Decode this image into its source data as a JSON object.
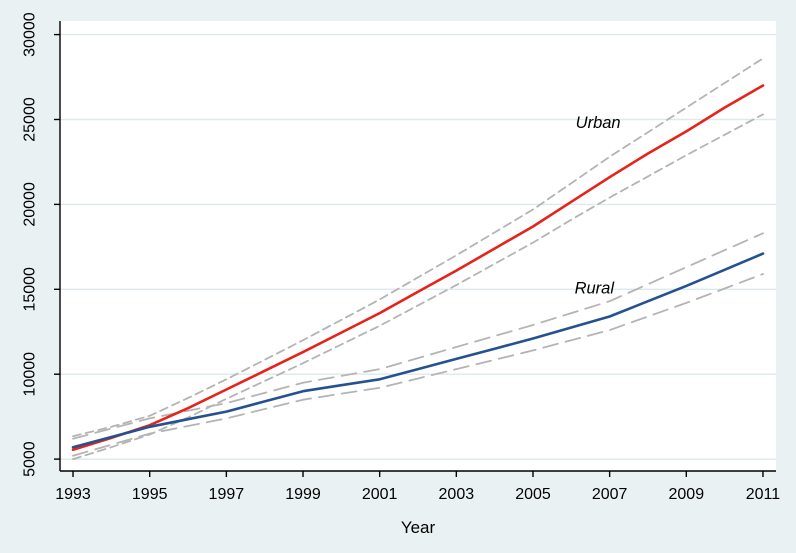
{
  "chart_data": {
    "type": "line",
    "title": "",
    "xlabel": "Year",
    "ylabel": "",
    "x": [
      1993,
      1994,
      1995,
      1996,
      1997,
      1998,
      1999,
      2000,
      2001,
      2002,
      2003,
      2004,
      2005,
      2006,
      2007,
      2008,
      2009,
      2010,
      2011
    ],
    "xticks": [
      1993,
      1995,
      1997,
      1999,
      2001,
      2003,
      2005,
      2007,
      2009,
      2011
    ],
    "yticks": [
      5000,
      10000,
      15000,
      20000,
      25000,
      30000
    ],
    "xlim": [
      1992.66,
      2011.34
    ],
    "ylim": [
      4300,
      30800
    ],
    "grid": "horizontal",
    "legend_position": "none",
    "series": [
      {
        "name": "Urban",
        "role": "mean",
        "color": "#e5231b",
        "style": "solid",
        "width": 2.6,
        "values": [
          5550,
          6250,
          7000,
          8000,
          9100,
          10200,
          11300,
          12450,
          13600,
          14850,
          16100,
          17400,
          18700,
          20150,
          21600,
          23000,
          24300,
          25700,
          27000
        ]
      },
      {
        "name": "Urban CI upper",
        "role": "ci-upper",
        "color": "#b4b4b4",
        "style": "dash-short",
        "width": 1.8,
        "values": [
          6350,
          6900,
          7550,
          8600,
          9700,
          10850,
          12000,
          13200,
          14400,
          15700,
          17000,
          18350,
          19700,
          21250,
          22800,
          24250,
          25700,
          27150,
          28600
        ]
      },
      {
        "name": "Urban CI lower",
        "role": "ci-lower",
        "color": "#b4b4b4",
        "style": "dash-short",
        "width": 1.8,
        "values": [
          5000,
          5700,
          6450,
          7450,
          8550,
          9600,
          10650,
          11750,
          12850,
          14050,
          15250,
          16500,
          17750,
          19100,
          20400,
          21650,
          22900,
          24100,
          25300
        ]
      },
      {
        "name": "Rural",
        "role": "mean",
        "color": "#24518f",
        "style": "solid",
        "width": 2.6,
        "values": [
          5700,
          6300,
          6900,
          7350,
          7800,
          8400,
          9000,
          9350,
          9700,
          10300,
          10900,
          11500,
          12100,
          12750,
          13400,
          14300,
          15200,
          16150,
          17100
        ]
      },
      {
        "name": "Rural CI upper",
        "role": "ci-upper",
        "color": "#b4b4b4",
        "style": "dash-long",
        "width": 1.8,
        "values": [
          6200,
          6800,
          7400,
          7850,
          8300,
          8900,
          9500,
          9900,
          10300,
          10950,
          11600,
          12250,
          12900,
          13600,
          14300,
          15300,
          16300,
          17300,
          18300
        ]
      },
      {
        "name": "Rural CI lower",
        "role": "ci-lower",
        "color": "#b4b4b4",
        "style": "dash-long",
        "width": 1.8,
        "values": [
          5200,
          5850,
          6500,
          6950,
          7400,
          7950,
          8500,
          8850,
          9200,
          9750,
          10300,
          10850,
          11400,
          12000,
          12600,
          13400,
          14200,
          15050,
          15900
        ]
      }
    ],
    "annotations": [
      {
        "text": "Urban",
        "x": 2006.7,
        "y": 24800,
        "italic": true
      },
      {
        "text": "Rural",
        "x": 2006.6,
        "y": 15050,
        "italic": true
      }
    ]
  },
  "style": {
    "background": "#eaf1f2",
    "plot_background": "#ffffff",
    "gridline_color": "#dde9eb",
    "axis_color": "#000000",
    "tick_label_size": 16,
    "axis_label_size": 17,
    "annotation_size": 16.5
  }
}
